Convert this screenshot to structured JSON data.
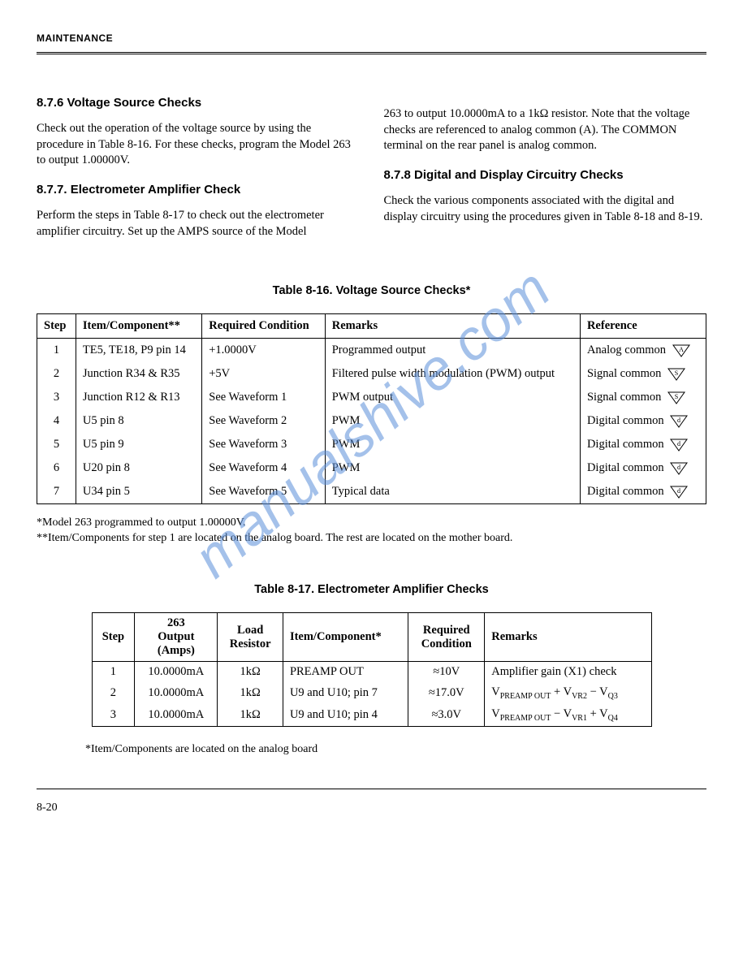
{
  "watermark": "manualshive.com",
  "header": "MAINTENANCE",
  "pageNumber": "8-20",
  "sections": {
    "s876": {
      "heading": "8.7.6 Voltage Source Checks",
      "body": "Check out the operation of the voltage source by using the procedure in Table 8-16. For these checks, program the Model 263 to output 1.00000V."
    },
    "s877": {
      "heading": "8.7.7. Electrometer Amplifier Check",
      "body": "Perform the steps in Table 8-17 to check out the electrometer amplifier circuitry. Set up the AMPS source of the Model"
    },
    "s877b": {
      "body": "263 to output 10.0000mA to a 1kΩ resistor. Note that the voltage checks are referenced to analog common (A). The COMMON terminal on the rear panel is analog common."
    },
    "s878": {
      "heading": "8.7.8 Digital and Display Circuitry Checks",
      "body": "Check the various components associated with the digital and display circuitry using the procedures given in Table 8-18 and 8-19."
    }
  },
  "table1": {
    "title": "Table 8-16. Voltage Source Checks*",
    "columns": [
      "Step",
      "Item/Component**",
      "Required Condition",
      "Remarks",
      "Reference"
    ],
    "rows": [
      {
        "step": "1",
        "item": "TE5, TE18, P9 pin 14",
        "cond": "+1.0000V",
        "remarks": "Programmed output",
        "ref": "Analog common",
        "sym": "A"
      },
      {
        "step": "2",
        "item": "Junction R34 & R35",
        "cond": "+5V",
        "remarks": "Filtered pulse width modulation (PWM) output",
        "ref": "Signal common",
        "sym": "S"
      },
      {
        "step": "3",
        "item": "Junction R12 & R13",
        "cond": "See Waveform 1",
        "remarks": "PWM output",
        "ref": "Signal common",
        "sym": "S"
      },
      {
        "step": "4",
        "item": "U5 pin 8",
        "cond": "See Waveform 2",
        "remarks": "PWM",
        "ref": "Digital common",
        "sym": "d"
      },
      {
        "step": "5",
        "item": "U5 pin 9",
        "cond": "See Waveform 3",
        "remarks": "PWM",
        "ref": "Digital common",
        "sym": "d"
      },
      {
        "step": "6",
        "item": "U20 pin 8",
        "cond": "See Waveform 4",
        "remarks": "PWM",
        "ref": "Digital common",
        "sym": "d"
      },
      {
        "step": "7",
        "item": "U34 pin 5",
        "cond": "See Waveform 5",
        "remarks": "Typical data",
        "ref": "Digital common",
        "sym": "d"
      }
    ],
    "footnote1": "*Model 263 programmed to output 1.00000V.",
    "footnote2": "**Item/Components for step 1 are located on the analog board. The rest are located on the mother board."
  },
  "table2": {
    "title": "Table 8-17. Electrometer Amplifier Checks",
    "columns": [
      "Step",
      "263 Output (Amps)",
      "Load Resistor",
      "Item/Component*",
      "Required Condition",
      "Remarks"
    ],
    "rows": [
      {
        "step": "1",
        "out": "10.0000mA",
        "load": "1kΩ",
        "item": "PREAMP OUT",
        "cond": "≈10V",
        "remarks_html": "Amplifier gain (X1) check"
      },
      {
        "step": "2",
        "out": "10.0000mA",
        "load": "1kΩ",
        "item": "U9 and U10; pin 7",
        "cond": "≈17.0V",
        "remarks_html": "V<span class='sub'>PREAMP OUT</span> + V<span class='sub'>VR2</span> − V<span class='sub'>Q3</span>"
      },
      {
        "step": "3",
        "out": "10.0000mA",
        "load": "1kΩ",
        "item": "U9 and U10; pin 4",
        "cond": "≈3.0V",
        "remarks_html": "V<span class='sub'>PREAMP OUT</span> − V<span class='sub'>VR1</span> + V<span class='sub'>Q4</span>"
      }
    ],
    "footnote": "*Item/Components are located on the analog board"
  }
}
